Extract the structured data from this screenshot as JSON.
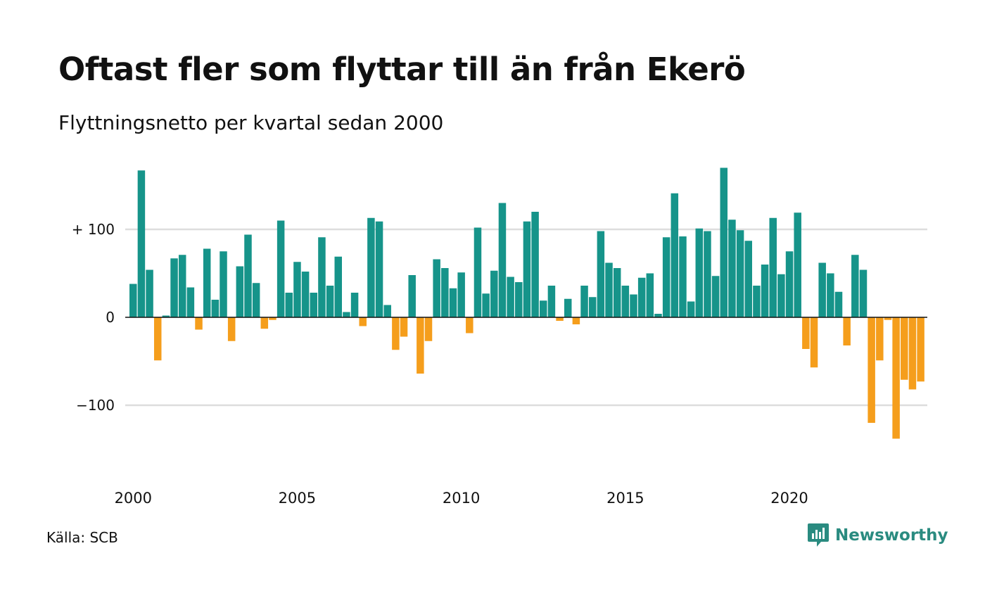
{
  "title": "Oftast fler som flyttar till än från Ekerö",
  "subtitle": "Flyttningsnetto per kvartal sedan 2000",
  "source": "Källa: SCB",
  "brand": "Newsworthy",
  "colors": {
    "positive": "#16948a",
    "negative": "#f59e1c",
    "grid": "#dddddd",
    "brand": "#2a8b80"
  },
  "chart_data": {
    "type": "bar",
    "title": "Oftast fler som flyttar till än från Ekerö",
    "subtitle": "Flyttningsnetto per kvartal sedan 2000",
    "x_start_year": 2000,
    "x_tick_labels": [
      "2000",
      "2005",
      "2010",
      "2015",
      "2020"
    ],
    "y_ticks": [
      100,
      0,
      -100
    ],
    "y_tick_labels": [
      "+ 100",
      "0",
      "−100"
    ],
    "ylim": [
      -160,
      180
    ],
    "grid": true,
    "values": [
      38,
      167,
      54,
      -49,
      2,
      67,
      71,
      34,
      -14,
      78,
      20,
      75,
      -27,
      58,
      94,
      39,
      -13,
      -3,
      110,
      28,
      63,
      52,
      28,
      91,
      36,
      69,
      6,
      28,
      -10,
      113,
      109,
      14,
      -37,
      -22,
      48,
      -64,
      -27,
      66,
      56,
      33,
      51,
      -18,
      102,
      27,
      53,
      130,
      46,
      40,
      109,
      120,
      19,
      36,
      -4,
      21,
      -8,
      36,
      23,
      98,
      62,
      56,
      36,
      26,
      45,
      50,
      4,
      91,
      141,
      92,
      18,
      101,
      98,
      47,
      170,
      111,
      99,
      87,
      36,
      60,
      113,
      49,
      75,
      119,
      -36,
      -57,
      62,
      50,
      29,
      -32,
      71,
      54,
      -120,
      -49,
      -3,
      -138,
      -71,
      -82,
      -73
    ]
  }
}
